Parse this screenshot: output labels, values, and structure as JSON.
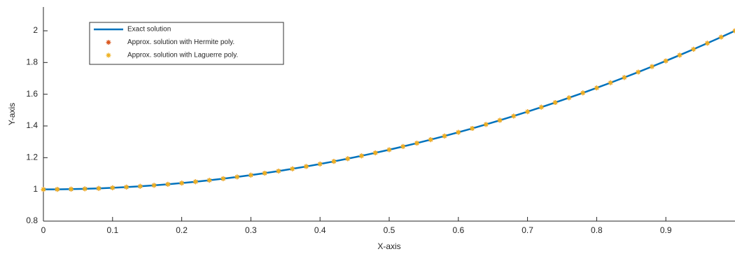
{
  "chart_data": {
    "type": "line",
    "x": [
      0,
      0.02,
      0.04,
      0.06,
      0.08,
      0.1,
      0.12,
      0.14,
      0.16,
      0.18,
      0.2,
      0.22,
      0.24,
      0.26,
      0.28,
      0.3,
      0.32,
      0.34,
      0.36,
      0.38,
      0.4,
      0.42,
      0.44,
      0.46,
      0.48,
      0.5,
      0.52,
      0.54,
      0.56,
      0.58,
      0.6,
      0.62,
      0.64,
      0.66,
      0.68,
      0.7,
      0.72,
      0.74,
      0.76,
      0.78,
      0.8,
      0.82,
      0.84,
      0.86,
      0.88,
      0.9,
      0.92,
      0.94,
      0.96,
      0.98,
      1
    ],
    "series": [
      {
        "name": "Exact solution",
        "color": "#0072bd",
        "style": "line",
        "values": [
          1,
          1.0004,
          1.0016,
          1.0036,
          1.0064,
          1.01,
          1.0144,
          1.0196,
          1.0256,
          1.0324,
          1.04,
          1.0484,
          1.0576,
          1.0676,
          1.0784,
          1.09,
          1.1024,
          1.1156,
          1.1296,
          1.1444,
          1.16,
          1.1764,
          1.1936,
          1.2116,
          1.2304,
          1.25,
          1.2704,
          1.2916,
          1.3136,
          1.3364,
          1.36,
          1.3844,
          1.4096,
          1.4356,
          1.4624,
          1.49,
          1.5184,
          1.5476,
          1.5776,
          1.6084,
          1.64,
          1.6724,
          1.7056,
          1.7396,
          1.7744,
          1.81,
          1.8464,
          1.8836,
          1.9216,
          1.9604,
          2
        ]
      },
      {
        "name": "Approx. solution with Hermite poly.",
        "color": "#d95319",
        "style": "marker",
        "values": [
          1,
          1.0004,
          1.0016,
          1.0036,
          1.0064,
          1.01,
          1.0144,
          1.0196,
          1.0256,
          1.0324,
          1.04,
          1.0484,
          1.0576,
          1.0676,
          1.0784,
          1.09,
          1.1024,
          1.1156,
          1.1296,
          1.1444,
          1.16,
          1.1764,
          1.1936,
          1.2116,
          1.2304,
          1.25,
          1.2704,
          1.2916,
          1.3136,
          1.3364,
          1.36,
          1.3844,
          1.4096,
          1.4356,
          1.4624,
          1.49,
          1.5184,
          1.5476,
          1.5776,
          1.6084,
          1.64,
          1.6724,
          1.7056,
          1.7396,
          1.7744,
          1.81,
          1.8464,
          1.8836,
          1.9216,
          1.9604,
          2
        ]
      },
      {
        "name": "Approx. solution with Laguerre poly.",
        "color": "#edb120",
        "style": "marker",
        "values": [
          1,
          1.0004,
          1.0016,
          1.0036,
          1.0064,
          1.01,
          1.0144,
          1.0196,
          1.0256,
          1.0324,
          1.04,
          1.0484,
          1.0576,
          1.0676,
          1.0784,
          1.09,
          1.1024,
          1.1156,
          1.1296,
          1.1444,
          1.16,
          1.1764,
          1.1936,
          1.2116,
          1.2304,
          1.25,
          1.2704,
          1.2916,
          1.3136,
          1.3364,
          1.36,
          1.3844,
          1.4096,
          1.4356,
          1.4624,
          1.49,
          1.5184,
          1.5476,
          1.5776,
          1.6084,
          1.64,
          1.6724,
          1.7056,
          1.7396,
          1.7744,
          1.81,
          1.8464,
          1.8836,
          1.9216,
          1.9604,
          2
        ]
      }
    ],
    "x_label": "X-axis",
    "y_label": "Y-axis",
    "xlim": [
      0,
      1
    ],
    "xticks": [
      0,
      0.1,
      0.2,
      0.3,
      0.4,
      0.5,
      0.6,
      0.7,
      0.8,
      0.9
    ],
    "ylim": [
      0.8,
      2.15
    ],
    "yticks": [
      0.8,
      1,
      1.2,
      1.4,
      1.6,
      1.8,
      2
    ],
    "legend": "top-left"
  }
}
